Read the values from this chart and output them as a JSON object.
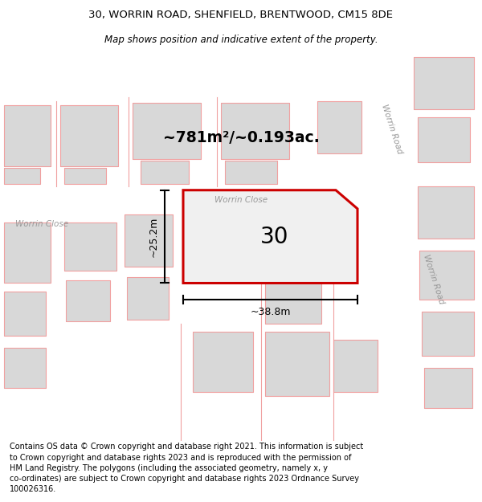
{
  "title_line1": "30, WORRIN ROAD, SHENFIELD, BRENTWOOD, CM15 8DE",
  "title_line2": "Map shows position and indicative extent of the property.",
  "footer_text": "Contains OS data © Crown copyright and database right 2021. This information is subject to Crown copyright and database rights 2023 and is reproduced with the permission of HM Land Registry. The polygons (including the associated geometry, namely x, y co-ordinates) are subject to Crown copyright and database rights 2023 Ordnance Survey 100026316.",
  "area_label": "~781m²/~0.193ac.",
  "house_number": "30",
  "dim_height": "~25.2m",
  "dim_width": "~38.8m",
  "background_color": "#ffffff",
  "map_bg_color": "#eeece8",
  "road_color": "#ffffff",
  "building_fill": "#d8d8d8",
  "building_edge": "#c0c0c0",
  "street_outline_color": "#f0a0a0",
  "highlight_color": "#cc0000",
  "worrin_road_label": "Worrin Road",
  "worrin_close_label_left": "Worrin Close",
  "worrin_close_label_road": "Worrin Close"
}
